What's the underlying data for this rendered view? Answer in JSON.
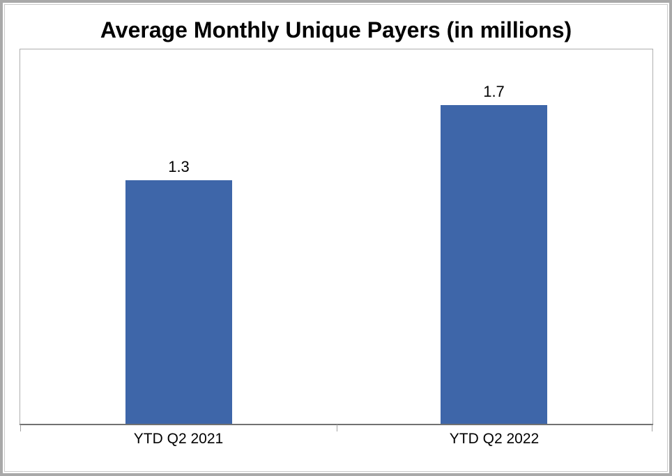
{
  "title": "Average Monthly Unique Payers (in millions)",
  "chart_data": {
    "type": "bar",
    "title": "Average Monthly Unique Payers (in millions)",
    "categories": [
      "YTD Q2 2021",
      "YTD Q2 2022"
    ],
    "values": [
      1.3,
      1.7
    ],
    "data_labels": [
      "1.3",
      "1.7"
    ],
    "xlabel": "",
    "ylabel": "",
    "ylim": [
      0,
      2
    ],
    "grid": false,
    "legend": false,
    "axis_ticks": "between-categories"
  },
  "colors": {
    "bar_fill": "#3e66a9",
    "axis_line": "#717171",
    "tick": "#a3a3a3",
    "plot_border": "#aeaeae",
    "frame_outer": "#a9a9a9",
    "frame_inner": "#c9c9c9",
    "text": "#000000",
    "background": "#ffffff"
  }
}
